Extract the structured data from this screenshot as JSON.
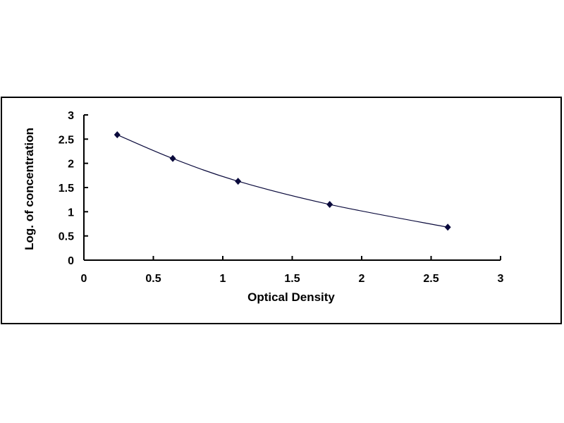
{
  "chart_data": {
    "type": "scatter",
    "title": "",
    "xlabel": "Optical Density",
    "ylabel": "Log. of concentration",
    "xlim": [
      0,
      3
    ],
    "ylim": [
      0,
      3
    ],
    "xticks": [
      "0",
      "0.5",
      "1",
      "1.5",
      "2",
      "2.5",
      "3"
    ],
    "yticks": [
      "0",
      "0.5",
      "1",
      "1.5",
      "2",
      "2.5",
      "3"
    ],
    "grid": false,
    "legend": "none",
    "marker": "diamond",
    "color": "#0a0a3c",
    "trendline": "smooth",
    "x": [
      0.24,
      0.64,
      1.11,
      1.77,
      2.62
    ],
    "y": [
      2.59,
      2.1,
      1.63,
      1.15,
      0.68
    ]
  }
}
